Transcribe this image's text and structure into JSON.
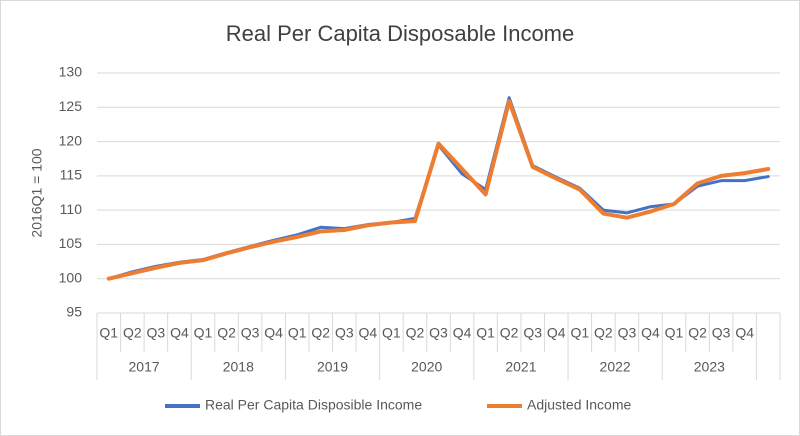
{
  "chart_data": {
    "type": "line",
    "title": "Real Per Capita Disposable Income",
    "y_label": "2016Q1 = 100",
    "categories": [
      "Q1",
      "Q2",
      "Q3",
      "Q4",
      "Q1",
      "Q2",
      "Q3",
      "Q4",
      "Q1",
      "Q2",
      "Q3",
      "Q4",
      "Q1",
      "Q2",
      "Q3",
      "Q4",
      "Q1",
      "Q2",
      "Q3",
      "Q4",
      "Q1",
      "Q2",
      "Q3",
      "Q4",
      "Q1",
      "Q2",
      "Q3",
      "Q4",
      null
    ],
    "groups": [
      "2017",
      "2018",
      "2019",
      "2020",
      "2021",
      "2022",
      "2023"
    ],
    "series": [
      {
        "name": "Real Per Capita Disposible Income",
        "color": "#4472c4",
        "values": [
          100,
          101,
          101.8,
          102.4,
          102.8,
          103.8,
          104.7,
          105.6,
          106.4,
          107.5,
          107.3,
          107.9,
          108.2,
          108.8,
          119.5,
          115.3,
          113,
          126.4,
          116.5,
          114.8,
          113.2,
          110,
          109.6,
          110.5,
          110.9,
          113.5,
          114.3,
          114.3,
          114.9
        ]
      },
      {
        "name": "Adjusted Income",
        "color": "#ed7d31",
        "values": [
          100,
          100.8,
          101.6,
          102.3,
          102.7,
          103.7,
          104.6,
          105.4,
          106.1,
          106.9,
          107.1,
          107.8,
          108.2,
          108.4,
          119.7,
          116,
          112.3,
          125.9,
          116.3,
          114.6,
          113,
          109.5,
          108.9,
          109.8,
          110.9,
          113.9,
          115,
          115.4,
          116
        ]
      }
    ],
    "ylim": [
      95,
      130
    ],
    "yticks": [
      95,
      100,
      105,
      110,
      115,
      120,
      125,
      130
    ],
    "grid": true,
    "legend": "bottom"
  }
}
